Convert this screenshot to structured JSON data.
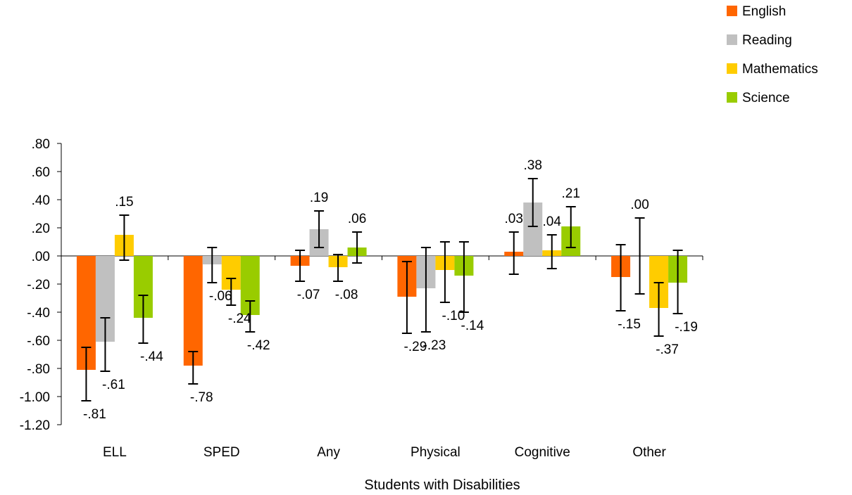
{
  "chart_data": {
    "type": "bar",
    "categories": [
      "ELL",
      "SPED",
      "Any",
      "Physical",
      "Cognitive",
      "Other"
    ],
    "xlabel": "Students with Disabilities",
    "ylabel": "",
    "title": "",
    "ylim": [
      -1.2,
      0.8
    ],
    "yticks": [
      0.8,
      0.6,
      0.4,
      0.2,
      0.0,
      -0.2,
      -0.4,
      -0.6,
      -0.8,
      -1.0,
      -1.2
    ],
    "ytick_labels": [
      ".80",
      ".60",
      ".40",
      ".20",
      ".00",
      "-.20",
      "-.40",
      "-.60",
      "-.80",
      "-1.00",
      "-1.20"
    ],
    "legend_position": "top-right",
    "grid": false,
    "series": [
      {
        "name": "English",
        "color": "#FF6600",
        "values": [
          -0.81,
          -0.78,
          -0.07,
          -0.29,
          0.03,
          -0.15
        ],
        "labels": [
          "-.81",
          "-.78",
          "-.07",
          "-.29",
          ".03",
          "-.15"
        ],
        "error_low": [
          -1.03,
          -0.91,
          -0.18,
          -0.55,
          -0.13,
          -0.39
        ],
        "error_high": [
          -0.65,
          -0.68,
          0.04,
          -0.04,
          0.17,
          0.08
        ]
      },
      {
        "name": "Reading",
        "color": "#C0C0C0",
        "values": [
          -0.61,
          -0.06,
          0.19,
          -0.23,
          0.38,
          0.0
        ],
        "labels": [
          "-.61",
          "-.06",
          ".19",
          "-.23",
          ".38",
          ".00"
        ],
        "error_low": [
          -0.82,
          -0.19,
          0.06,
          -0.54,
          0.21,
          -0.27
        ],
        "error_high": [
          -0.44,
          0.06,
          0.32,
          0.06,
          0.55,
          0.27
        ]
      },
      {
        "name": "Mathematics",
        "color": "#FFCC00",
        "values": [
          0.15,
          -0.24,
          -0.08,
          -0.1,
          0.04,
          -0.37
        ],
        "labels": [
          ".15",
          "-.24",
          "-.08",
          "-.10",
          ".04",
          "-.37"
        ],
        "error_low": [
          -0.03,
          -0.35,
          -0.18,
          -0.33,
          -0.09,
          -0.57
        ],
        "error_high": [
          0.29,
          -0.16,
          0.01,
          0.1,
          0.15,
          -0.19
        ]
      },
      {
        "name": "Science",
        "color": "#99CC00",
        "values": [
          -0.44,
          -0.42,
          0.06,
          -0.14,
          0.21,
          -0.19
        ],
        "labels": [
          "-.44",
          "-.42",
          ".06",
          "-.14",
          ".21",
          "-.19"
        ],
        "error_low": [
          -0.62,
          -0.54,
          -0.05,
          -0.4,
          0.06,
          -0.41
        ],
        "error_high": [
          -0.28,
          -0.32,
          0.17,
          0.1,
          0.35,
          0.04
        ]
      }
    ]
  }
}
